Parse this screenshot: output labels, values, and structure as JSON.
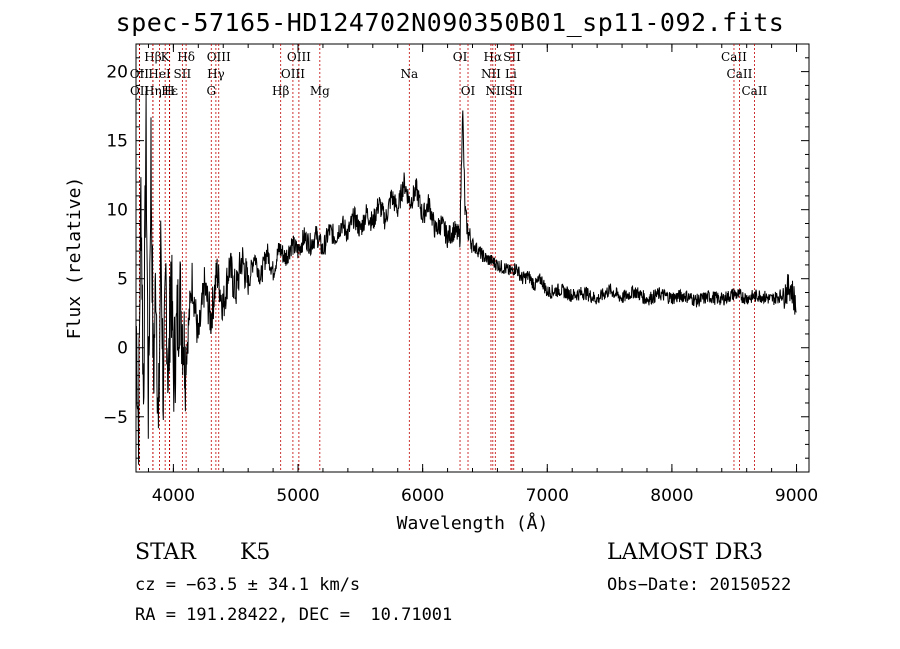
{
  "chart_data": {
    "type": "line",
    "title": "spec-57165-HD124702N090350B01_sp11-092.fits",
    "xlabel": "Wavelength (Å)",
    "ylabel": "Flux (relative)",
    "xlim": [
      3700,
      9100
    ],
    "ylim": [
      -9,
      22
    ],
    "xticks": [
      "4000",
      "5000",
      "6000",
      "7000",
      "8000",
      "9000"
    ],
    "yticks": [
      "20",
      "15",
      "10",
      "5",
      "0",
      "−5"
    ],
    "spectrum": {
      "x": [
        3700,
        3720,
        3740,
        3760,
        3780,
        3800,
        3820,
        3840,
        3860,
        3880,
        3900,
        3920,
        3940,
        3960,
        3980,
        4000,
        4050,
        4100,
        4150,
        4200,
        4250,
        4300,
        4350,
        4400,
        4450,
        4500,
        4550,
        4600,
        4650,
        4700,
        4750,
        4800,
        4850,
        4900,
        4950,
        5000,
        5050,
        5100,
        5150,
        5200,
        5250,
        5300,
        5350,
        5400,
        5450,
        5500,
        5550,
        5600,
        5650,
        5700,
        5750,
        5800,
        5850,
        5900,
        5950,
        6000,
        6050,
        6100,
        6150,
        6200,
        6250,
        6300,
        6320,
        6340,
        6360,
        6400,
        6450,
        6500,
        6550,
        6600,
        6650,
        6700,
        6750,
        6800,
        6850,
        6900,
        6950,
        7000,
        7100,
        7200,
        7300,
        7400,
        7500,
        7600,
        7700,
        7800,
        7900,
        8000,
        8100,
        8200,
        8300,
        8400,
        8500,
        8600,
        8700,
        8800,
        8900,
        8950,
        9000
      ],
      "y": [
        3.0,
        -6.0,
        12.0,
        -4.0,
        16.0,
        -5.0,
        14.5,
        -3.0,
        6.0,
        -7.0,
        8.0,
        -4.0,
        5.0,
        -3.0,
        6.0,
        -2.0,
        4.0,
        -1.0,
        5.0,
        0.5,
        4.5,
        2.0,
        5.5,
        3.0,
        6.0,
        4.0,
        6.5,
        4.5,
        6.8,
        5.0,
        7.0,
        5.5,
        7.2,
        6.5,
        7.5,
        7.0,
        8.0,
        7.5,
        8.2,
        7.0,
        8.5,
        8.0,
        9.0,
        8.3,
        9.5,
        8.5,
        9.8,
        9.0,
        10.5,
        9.2,
        11.0,
        10.0,
        12.0,
        10.5,
        11.5,
        9.5,
        10.5,
        8.5,
        9.0,
        8.0,
        8.5,
        8.0,
        17.5,
        10.0,
        8.5,
        7.5,
        7.0,
        6.5,
        6.3,
        6.0,
        5.8,
        5.5,
        5.8,
        5.0,
        5.2,
        4.5,
        5.0,
        4.0,
        4.2,
        3.8,
        4.0,
        3.5,
        4.2,
        3.6,
        4.1,
        3.5,
        3.9,
        3.6,
        3.8,
        3.4,
        3.7,
        3.5,
        3.9,
        3.6,
        3.8,
        3.5,
        3.9,
        4.5,
        3.0
      ]
    },
    "lines": [
      {
        "label": "Hβ",
        "wl": 3836,
        "row": 0
      },
      {
        "label": "K",
        "wl": 3934,
        "row": 0
      },
      {
        "label": "Hδ",
        "wl": 4102,
        "row": 0
      },
      {
        "label": "OIII",
        "wl": 4364,
        "row": 0
      },
      {
        "label": "OIII",
        "wl": 5007,
        "row": 0
      },
      {
        "label": "OI",
        "wl": 6300,
        "row": 0
      },
      {
        "label": "Hα",
        "wl": 6563,
        "row": 0
      },
      {
        "label": "SII",
        "wl": 6717,
        "row": 0
      },
      {
        "label": "CaII",
        "wl": 8498,
        "row": 0
      },
      {
        "label": "OII",
        "wl": 3727,
        "row": 1
      },
      {
        "label": "HeI",
        "wl": 3889,
        "row": 1
      },
      {
        "label": "SII",
        "wl": 4072,
        "row": 1
      },
      {
        "label": "Hγ",
        "wl": 4341,
        "row": 1
      },
      {
        "label": "OIII",
        "wl": 4959,
        "row": 1
      },
      {
        "label": "Na",
        "wl": 5893,
        "row": 1
      },
      {
        "label": "NII",
        "wl": 6548,
        "row": 1
      },
      {
        "label": "Li",
        "wl": 6708,
        "row": 1
      },
      {
        "label": "CaII",
        "wl": 8542,
        "row": 1
      },
      {
        "label": "OII",
        "wl": 3729,
        "row": 2
      },
      {
        "label": "Hε",
        "wl": 3970,
        "row": 2
      },
      {
        "label": "Hη",
        "wl": 3835,
        "row": 2
      },
      {
        "label": "H",
        "wl": 3968,
        "row": 2
      },
      {
        "label": "G",
        "wl": 4304,
        "row": 2
      },
      {
        "label": "Hβ",
        "wl": 4861,
        "row": 2
      },
      {
        "label": "Mg",
        "wl": 5175,
        "row": 2
      },
      {
        "label": "OI",
        "wl": 6364,
        "row": 2
      },
      {
        "label": "NII",
        "wl": 6583,
        "row": 2
      },
      {
        "label": "SII",
        "wl": 6731,
        "row": 2
      },
      {
        "label": "CaII",
        "wl": 8662,
        "row": 2
      }
    ]
  },
  "info": {
    "class": "STAR",
    "subclass": "K5",
    "survey": "LAMOST DR3",
    "cz": "cz = −63.5 ± 34.1 km/s",
    "obs_date": "Obs−Date: 20150522",
    "radec": "RA = 191.28422, DEC =  10.71001"
  }
}
